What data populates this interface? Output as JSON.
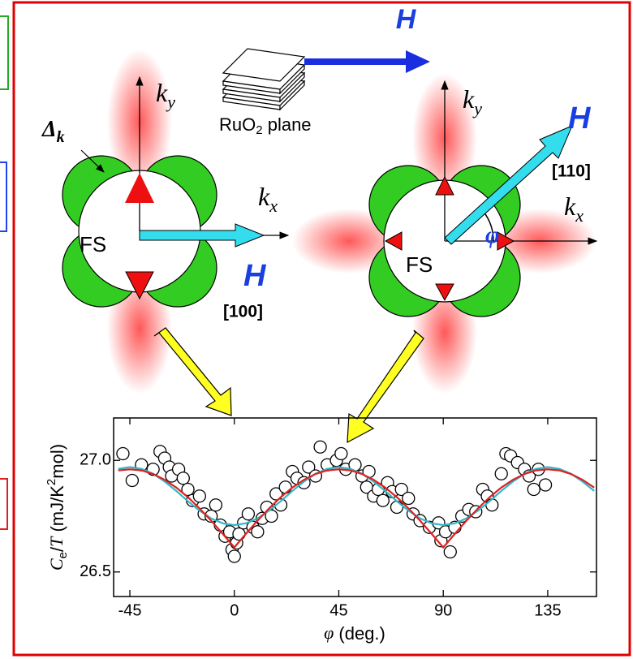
{
  "diagram": {
    "top_field": "H",
    "plane_label": [
      "RuO",
      "2",
      " plane"
    ],
    "left": {
      "gap": [
        "Δ",
        "k"
      ],
      "ky": [
        "k",
        "y"
      ],
      "kx": [
        "k",
        "x"
      ],
      "fs": "FS",
      "field": "H",
      "direction": "[100]"
    },
    "right": {
      "ky": [
        "k",
        "y"
      ],
      "kx": [
        "k",
        "x"
      ],
      "fs": "FS",
      "field": "H",
      "direction": "[110]",
      "angle": "φ"
    }
  },
  "chart_data": {
    "type": "scatter",
    "xlabel": [
      "φ",
      " (deg.)"
    ],
    "ylabel": [
      "C",
      "e",
      "/",
      "T",
      " (mJ/K",
      "2",
      "mol)"
    ],
    "x": [
      -48,
      -44,
      -40,
      -35,
      -32,
      -30,
      -28,
      -27,
      -24,
      -22,
      -20,
      -18,
      -15,
      -13,
      -10,
      -8,
      -6,
      -4,
      -2,
      -1,
      0,
      1,
      2,
      4,
      6,
      8,
      10,
      12,
      14,
      16,
      18,
      20,
      22,
      25,
      27,
      30,
      32,
      35,
      37,
      40,
      44,
      46,
      48,
      52,
      55,
      57,
      58,
      60,
      62,
      64,
      66,
      68,
      70,
      72,
      75,
      77,
      80,
      84,
      88,
      89,
      91,
      93,
      95,
      98,
      101,
      104,
      107,
      109,
      111,
      115,
      117,
      119,
      122,
      125,
      127,
      129,
      131,
      134
    ],
    "values": [
      27.03,
      26.91,
      26.98,
      26.96,
      27.04,
      27.01,
      26.97,
      26.93,
      26.96,
      26.92,
      26.87,
      26.82,
      26.84,
      26.76,
      26.75,
      26.8,
      26.71,
      26.66,
      26.68,
      26.6,
      26.57,
      26.63,
      26.67,
      26.72,
      26.76,
      26.7,
      26.68,
      26.74,
      26.79,
      26.75,
      26.85,
      26.8,
      26.88,
      26.95,
      26.92,
      26.9,
      26.97,
      26.93,
      27.06,
      26.98,
      27.0,
      27.03,
      26.96,
      26.98,
      26.93,
      26.88,
      26.95,
      26.84,
      26.87,
      26.82,
      26.9,
      26.86,
      26.79,
      26.87,
      26.83,
      26.76,
      26.73,
      26.7,
      26.72,
      26.64,
      26.68,
      26.59,
      26.7,
      26.75,
      26.78,
      26.77,
      26.87,
      26.84,
      26.8,
      26.94,
      27.03,
      27.02,
      26.99,
      26.96,
      26.93,
      26.87,
      26.96,
      26.89
    ],
    "marker_color": "#ffffff",
    "curve_x": [
      -50,
      -45,
      -40,
      -35,
      -30,
      -25,
      -20,
      -15,
      -10,
      -5,
      0,
      5,
      10,
      15,
      20,
      25,
      30,
      35,
      40,
      45,
      50,
      55,
      60,
      65,
      70,
      75,
      80,
      85,
      90,
      95,
      100,
      105,
      110,
      115,
      120,
      125,
      130,
      135,
      140,
      145,
      150,
      155
    ],
    "curves": [
      {
        "color": "#30b8c8",
        "values": [
          26.962,
          26.97,
          26.962,
          26.94,
          26.905,
          26.863,
          26.817,
          26.775,
          26.74,
          26.718,
          26.71,
          26.718,
          26.74,
          26.775,
          26.817,
          26.863,
          26.905,
          26.94,
          26.962,
          26.97,
          26.962,
          26.94,
          26.905,
          26.863,
          26.817,
          26.775,
          26.74,
          26.718,
          26.71,
          26.718,
          26.74,
          26.775,
          26.817,
          26.863,
          26.905,
          26.94,
          26.962,
          26.97,
          26.962,
          26.94,
          26.905,
          26.863
        ]
      },
      {
        "color": "#e02020",
        "values": [
          26.955,
          26.96,
          26.955,
          26.939,
          26.913,
          26.878,
          26.835,
          26.785,
          26.73,
          26.671,
          26.61,
          26.671,
          26.73,
          26.785,
          26.835,
          26.878,
          26.913,
          26.939,
          26.955,
          26.96,
          26.955,
          26.939,
          26.913,
          26.878,
          26.835,
          26.785,
          26.73,
          26.671,
          26.61,
          26.671,
          26.73,
          26.785,
          26.835,
          26.878,
          26.913,
          26.939,
          26.955,
          26.96,
          26.955,
          26.939,
          26.913,
          26.878
        ]
      }
    ],
    "xlim": [
      -52,
      156
    ],
    "ylim": [
      26.39,
      27.19
    ],
    "xticks": [
      -45,
      0,
      45,
      90,
      135
    ],
    "yticks": [
      26.5,
      {
        "value": 27,
        "label": "27.0"
      }
    ]
  }
}
